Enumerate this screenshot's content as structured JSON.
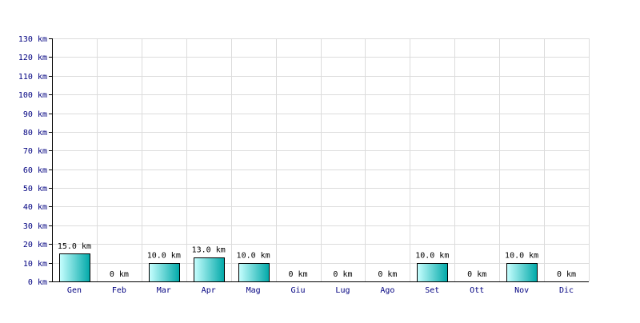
{
  "chart_data": {
    "type": "bar",
    "categories": [
      "Gen",
      "Feb",
      "Mar",
      "Apr",
      "Mag",
      "Giu",
      "Lug",
      "Ago",
      "Set",
      "Ott",
      "Nov",
      "Dic"
    ],
    "values": [
      15,
      0,
      10,
      13,
      10,
      0,
      0,
      0,
      10,
      0,
      10,
      0
    ],
    "data_labels": [
      "15.0 km",
      "0 km",
      "10.0 km",
      "13.0 km",
      "10.0 km",
      "0 km",
      "0 km",
      "0 km",
      "10.0 km",
      "0 km",
      "10.0 km",
      "0 km"
    ],
    "y_ticks": [
      "0 km",
      "10 km",
      "20 km",
      "30 km",
      "40 km",
      "50 km",
      "60 km",
      "70 km",
      "80 km",
      "90 km",
      "100 km",
      "110 km",
      "120 km",
      "130 km"
    ],
    "ylim": [
      0,
      130
    ],
    "y_step": 10,
    "grid": true,
    "title": "",
    "xlabel": "",
    "ylabel": "",
    "colors": {
      "bar_light": "#c8ffff",
      "bar_dark": "#00a8a8",
      "bar_stroke": "#000000",
      "grid": "#dcdcdc",
      "axis": "#000000",
      "tick_text": "#000080",
      "label_text": "#000000"
    }
  }
}
